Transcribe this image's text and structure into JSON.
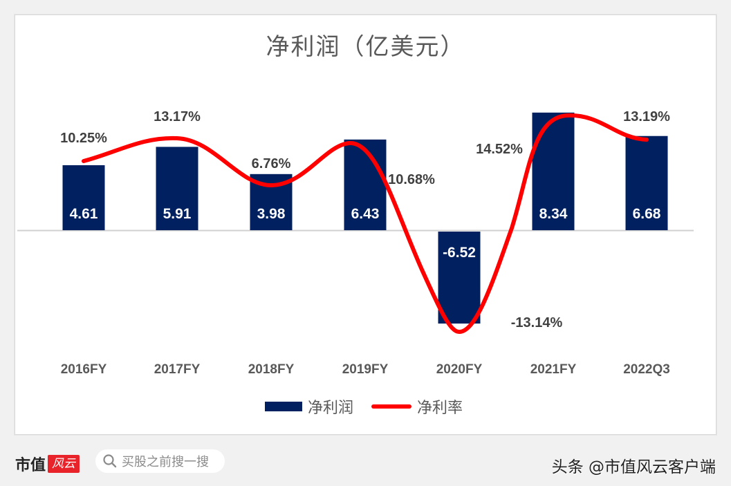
{
  "chart_data": {
    "type": "bar",
    "title": "净利润（亿美元）",
    "categories": [
      "2016FY",
      "2017FY",
      "2018FY",
      "2019FY",
      "2020FY",
      "2021FY",
      "2022Q3"
    ],
    "series": [
      {
        "name": "净利润",
        "type": "bar",
        "color": "#002060",
        "values": [
          4.61,
          5.91,
          3.98,
          6.43,
          -6.52,
          8.34,
          6.68
        ]
      },
      {
        "name": "净利率",
        "type": "line",
        "color": "#ff0000",
        "unit": "%",
        "values": [
          10.25,
          13.17,
          6.76,
          10.68,
          -13.14,
          14.52,
          13.19
        ]
      }
    ],
    "bar_labels": [
      "4.61",
      "5.91",
      "3.98",
      "6.43",
      "-6.52",
      "8.34",
      "6.68"
    ],
    "line_labels": [
      "10.25%",
      "13.17%",
      "6.76%",
      "10.68%",
      "-13.14%",
      "14.52%",
      "13.19%"
    ],
    "xlabel": "",
    "ylabel": "",
    "grid": false,
    "legend_position": "bottom",
    "legend": [
      "净利润",
      "净利率"
    ]
  },
  "title": "净利润（亿美元）",
  "legend": {
    "bar_label": "净利润",
    "line_label": "净利率"
  },
  "footer": {
    "logo_text": "市值",
    "logo_badge": "风云",
    "search_placeholder": "买股之前搜一搜",
    "attribution": "头条 @市值风云客户端"
  },
  "colors": {
    "bar": "#002060",
    "line": "#ff0000",
    "background": "#f1f1f1"
  }
}
